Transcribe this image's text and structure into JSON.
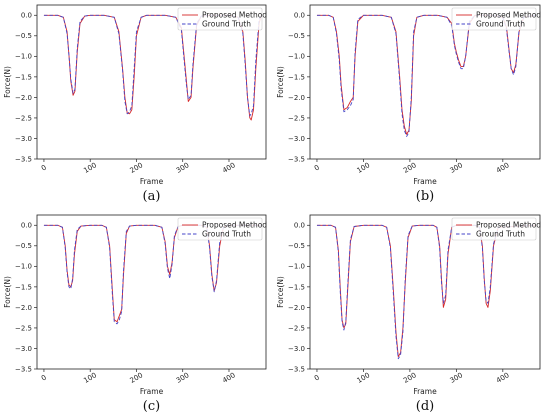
{
  "chart_data": [
    {
      "type": "line",
      "caption": "(a)",
      "xlabel": "Frame",
      "ylabel": "Force(N)",
      "xlim": [
        -15,
        480
      ],
      "ylim": [
        -3.5,
        0.25
      ],
      "xticks": [
        0,
        100,
        200,
        300,
        400
      ],
      "yticks": [
        0.0,
        -0.5,
        -1.0,
        -1.5,
        -2.0,
        -2.5,
        -3.0,
        -3.5
      ],
      "legend": "top-right",
      "series": [
        {
          "name": "Proposed Method",
          "color": "#d62728",
          "style": "solid",
          "x": [
            0,
            30,
            42,
            50,
            55,
            58,
            63,
            67,
            72,
            78,
            88,
            100,
            130,
            152,
            162,
            170,
            175,
            180,
            185,
            190,
            195,
            200,
            210,
            222,
            240,
            262,
            285,
            297,
            303,
            308,
            312,
            318,
            322,
            330,
            340,
            360,
            400,
            420,
            430,
            435,
            440,
            445,
            448,
            453,
            458,
            465,
            470
          ],
          "y": [
            0,
            0,
            -0.05,
            -0.4,
            -1.1,
            -1.6,
            -1.95,
            -1.85,
            -0.9,
            -0.2,
            -0.02,
            0,
            0,
            -0.05,
            -0.4,
            -1.3,
            -2.0,
            -2.38,
            -2.4,
            -2.3,
            -1.5,
            -0.5,
            -0.05,
            0,
            0,
            0,
            -0.05,
            -0.3,
            -1.0,
            -1.6,
            -2.1,
            -2.0,
            -1.3,
            -0.25,
            -0.02,
            0,
            0,
            -0.05,
            -0.4,
            -1.1,
            -2.0,
            -2.5,
            -2.55,
            -2.3,
            -1.3,
            -0.2,
            0
          ]
        },
        {
          "name": "Ground Truth",
          "color": "#4646c8",
          "style": "dashed",
          "x": [
            0,
            30,
            42,
            50,
            55,
            58,
            63,
            67,
            72,
            78,
            88,
            100,
            130,
            152,
            162,
            170,
            175,
            180,
            185,
            190,
            195,
            200,
            210,
            222,
            240,
            262,
            285,
            297,
            303,
            308,
            312,
            318,
            322,
            330,
            340,
            360,
            400,
            420,
            430,
            435,
            440,
            445,
            448,
            453,
            458,
            465,
            470
          ],
          "y": [
            0,
            0,
            -0.05,
            -0.45,
            -1.1,
            -1.55,
            -1.9,
            -1.8,
            -0.8,
            -0.15,
            -0.02,
            0,
            0,
            -0.05,
            -0.45,
            -1.35,
            -2.1,
            -2.4,
            -2.35,
            -2.2,
            -1.3,
            -0.4,
            -0.05,
            0,
            0,
            0,
            -0.05,
            -0.35,
            -1.1,
            -1.7,
            -2.05,
            -1.95,
            -1.2,
            -0.2,
            -0.02,
            0,
            0,
            -0.05,
            -0.45,
            -1.2,
            -2.0,
            -2.45,
            -2.4,
            -2.2,
            -1.1,
            -0.1,
            0
          ]
        }
      ]
    },
    {
      "type": "line",
      "caption": "(b)",
      "xlabel": "Frame",
      "ylabel": "Force(N)",
      "xlim": [
        -15,
        480
      ],
      "ylim": [
        -3.5,
        0.25
      ],
      "xticks": [
        0,
        100,
        200,
        300,
        400
      ],
      "yticks": [
        0.0,
        -0.5,
        -1.0,
        -1.5,
        -2.0,
        -2.5,
        -3.0,
        -3.5
      ],
      "legend": "top-right",
      "series": [
        {
          "name": "Proposed Method",
          "color": "#d62728",
          "style": "solid",
          "x": [
            0,
            25,
            35,
            42,
            48,
            52,
            58,
            65,
            72,
            78,
            82,
            88,
            100,
            140,
            160,
            170,
            178,
            183,
            188,
            193,
            198,
            203,
            208,
            215,
            230,
            260,
            280,
            290,
            296,
            300,
            305,
            310,
            315,
            320,
            328,
            340,
            380,
            400,
            408,
            413,
            418,
            423,
            428,
            435,
            445,
            470
          ],
          "y": [
            0,
            0,
            -0.05,
            -0.4,
            -1.0,
            -1.7,
            -2.3,
            -2.25,
            -2.1,
            -2.0,
            -1.0,
            -0.15,
            0,
            0,
            -0.05,
            -0.4,
            -1.5,
            -2.3,
            -2.7,
            -2.9,
            -2.8,
            -2.1,
            -0.5,
            -0.05,
            0,
            0,
            -0.05,
            -0.2,
            -0.7,
            -0.9,
            -1.1,
            -1.25,
            -1.25,
            -1.0,
            -0.2,
            0,
            0,
            -0.05,
            -0.3,
            -0.8,
            -1.3,
            -1.4,
            -1.2,
            -0.4,
            -0.05,
            0
          ]
        },
        {
          "name": "Ground Truth",
          "color": "#4646c8",
          "style": "dashed",
          "x": [
            0,
            25,
            35,
            42,
            48,
            52,
            58,
            65,
            72,
            78,
            82,
            88,
            100,
            140,
            160,
            170,
            178,
            183,
            188,
            193,
            198,
            203,
            208,
            215,
            230,
            260,
            280,
            290,
            296,
            300,
            305,
            310,
            315,
            320,
            328,
            340,
            380,
            400,
            408,
            413,
            418,
            423,
            428,
            435,
            445,
            470
          ],
          "y": [
            0,
            0,
            -0.05,
            -0.45,
            -1.1,
            -1.8,
            -2.35,
            -2.3,
            -2.2,
            -2.05,
            -0.9,
            -0.1,
            0,
            0,
            -0.05,
            -0.45,
            -1.6,
            -2.4,
            -2.8,
            -2.95,
            -2.85,
            -2.0,
            -0.4,
            -0.05,
            0,
            0,
            -0.05,
            -0.25,
            -0.75,
            -0.95,
            -1.15,
            -1.3,
            -1.3,
            -1.0,
            -0.15,
            0,
            0,
            -0.05,
            -0.35,
            -0.85,
            -1.3,
            -1.45,
            -1.25,
            -0.35,
            -0.05,
            0
          ]
        }
      ]
    },
    {
      "type": "line",
      "caption": "(c)",
      "xlabel": "Frame",
      "ylabel": "Force(N)",
      "xlim": [
        -15,
        480
      ],
      "ylim": [
        -3.5,
        0.25
      ],
      "xticks": [
        0,
        100,
        200,
        300,
        400
      ],
      "yticks": [
        0.0,
        -0.5,
        -1.0,
        -1.5,
        -2.0,
        -2.5,
        -3.0,
        -3.5
      ],
      "legend": "top-right",
      "series": [
        {
          "name": "Proposed Method",
          "color": "#d62728",
          "style": "solid",
          "x": [
            0,
            30,
            40,
            46,
            50,
            54,
            58,
            62,
            66,
            72,
            80,
            100,
            125,
            135,
            142,
            148,
            152,
            158,
            163,
            168,
            172,
            178,
            185,
            200,
            240,
            255,
            262,
            267,
            272,
            277,
            282,
            290,
            300,
            340,
            352,
            358,
            363,
            368,
            373,
            380,
            388,
            400,
            470
          ],
          "y": [
            0,
            0,
            -0.05,
            -0.5,
            -1.1,
            -1.45,
            -1.5,
            -1.35,
            -0.7,
            -0.15,
            -0.02,
            0,
            0,
            -0.05,
            -0.5,
            -1.6,
            -2.3,
            -2.35,
            -2.2,
            -2.05,
            -1.2,
            -0.2,
            -0.02,
            0,
            0,
            -0.05,
            -0.4,
            -1.0,
            -1.2,
            -0.9,
            -0.3,
            -0.03,
            0,
            0,
            -0.05,
            -0.5,
            -1.2,
            -1.6,
            -1.4,
            -0.5,
            -0.05,
            0,
            0
          ]
        },
        {
          "name": "Ground Truth",
          "color": "#4646c8",
          "style": "dashed",
          "x": [
            0,
            30,
            40,
            46,
            50,
            54,
            58,
            62,
            66,
            72,
            80,
            100,
            125,
            135,
            142,
            148,
            152,
            158,
            163,
            168,
            172,
            178,
            185,
            200,
            240,
            255,
            262,
            267,
            272,
            277,
            282,
            290,
            300,
            340,
            352,
            358,
            363,
            368,
            373,
            380,
            388,
            400,
            470
          ],
          "y": [
            0,
            0,
            -0.05,
            -0.55,
            -1.15,
            -1.5,
            -1.55,
            -1.3,
            -0.6,
            -0.1,
            -0.02,
            0,
            0,
            -0.05,
            -0.55,
            -1.7,
            -2.35,
            -2.4,
            -2.3,
            -2.1,
            -1.1,
            -0.15,
            -0.02,
            0,
            0,
            -0.05,
            -0.45,
            -1.05,
            -1.3,
            -0.95,
            -0.25,
            -0.03,
            0,
            0,
            -0.05,
            -0.55,
            -1.25,
            -1.62,
            -1.35,
            -0.4,
            -0.05,
            0,
            0
          ]
        }
      ]
    },
    {
      "type": "line",
      "caption": "(d)",
      "xlabel": "Frame",
      "ylabel": "Force(N)",
      "xlim": [
        -15,
        480
      ],
      "ylim": [
        -3.5,
        0.25
      ],
      "xticks": [
        0,
        100,
        200,
        300,
        400
      ],
      "yticks": [
        0.0,
        -0.5,
        -1.0,
        -1.5,
        -2.0,
        -2.5,
        -3.0,
        -3.5
      ],
      "legend": "top-right",
      "series": [
        {
          "name": "Proposed Method",
          "color": "#d62728",
          "style": "solid",
          "x": [
            0,
            30,
            40,
            46,
            50,
            54,
            58,
            62,
            66,
            72,
            80,
            100,
            140,
            150,
            158,
            164,
            170,
            175,
            180,
            185,
            190,
            196,
            205,
            220,
            250,
            258,
            264,
            268,
            272,
            277,
            282,
            290,
            300,
            340,
            350,
            356,
            360,
            364,
            368,
            373,
            380,
            390,
            470
          ],
          "y": [
            0,
            0,
            -0.05,
            -0.6,
            -1.5,
            -2.3,
            -2.5,
            -2.4,
            -1.6,
            -0.4,
            -0.03,
            0,
            0,
            -0.05,
            -0.5,
            -1.5,
            -2.6,
            -3.2,
            -3.1,
            -2.5,
            -1.4,
            -0.3,
            -0.02,
            0,
            0,
            -0.05,
            -0.5,
            -1.3,
            -2.0,
            -1.8,
            -0.7,
            -0.05,
            0,
            0,
            -0.05,
            -0.5,
            -1.3,
            -1.9,
            -2.0,
            -1.6,
            -0.5,
            -0.05,
            0
          ]
        },
        {
          "name": "Ground Truth",
          "color": "#4646c8",
          "style": "dashed",
          "x": [
            0,
            30,
            40,
            46,
            50,
            54,
            58,
            62,
            66,
            72,
            80,
            100,
            140,
            150,
            158,
            164,
            170,
            175,
            180,
            185,
            190,
            196,
            205,
            220,
            250,
            258,
            264,
            268,
            272,
            277,
            282,
            290,
            300,
            340,
            350,
            356,
            360,
            364,
            368,
            373,
            380,
            390,
            470
          ],
          "y": [
            0,
            0,
            -0.05,
            -0.65,
            -1.6,
            -2.35,
            -2.55,
            -2.35,
            -1.5,
            -0.35,
            -0.03,
            0,
            0,
            -0.05,
            -0.55,
            -1.6,
            -2.7,
            -3.25,
            -3.15,
            -2.6,
            -1.3,
            -0.25,
            -0.02,
            0,
            0,
            -0.05,
            -0.55,
            -1.4,
            -1.9,
            -1.7,
            -0.6,
            -0.05,
            0,
            0,
            -0.05,
            -0.55,
            -1.35,
            -1.85,
            -1.9,
            -1.5,
            -0.45,
            -0.05,
            0
          ]
        }
      ]
    }
  ]
}
